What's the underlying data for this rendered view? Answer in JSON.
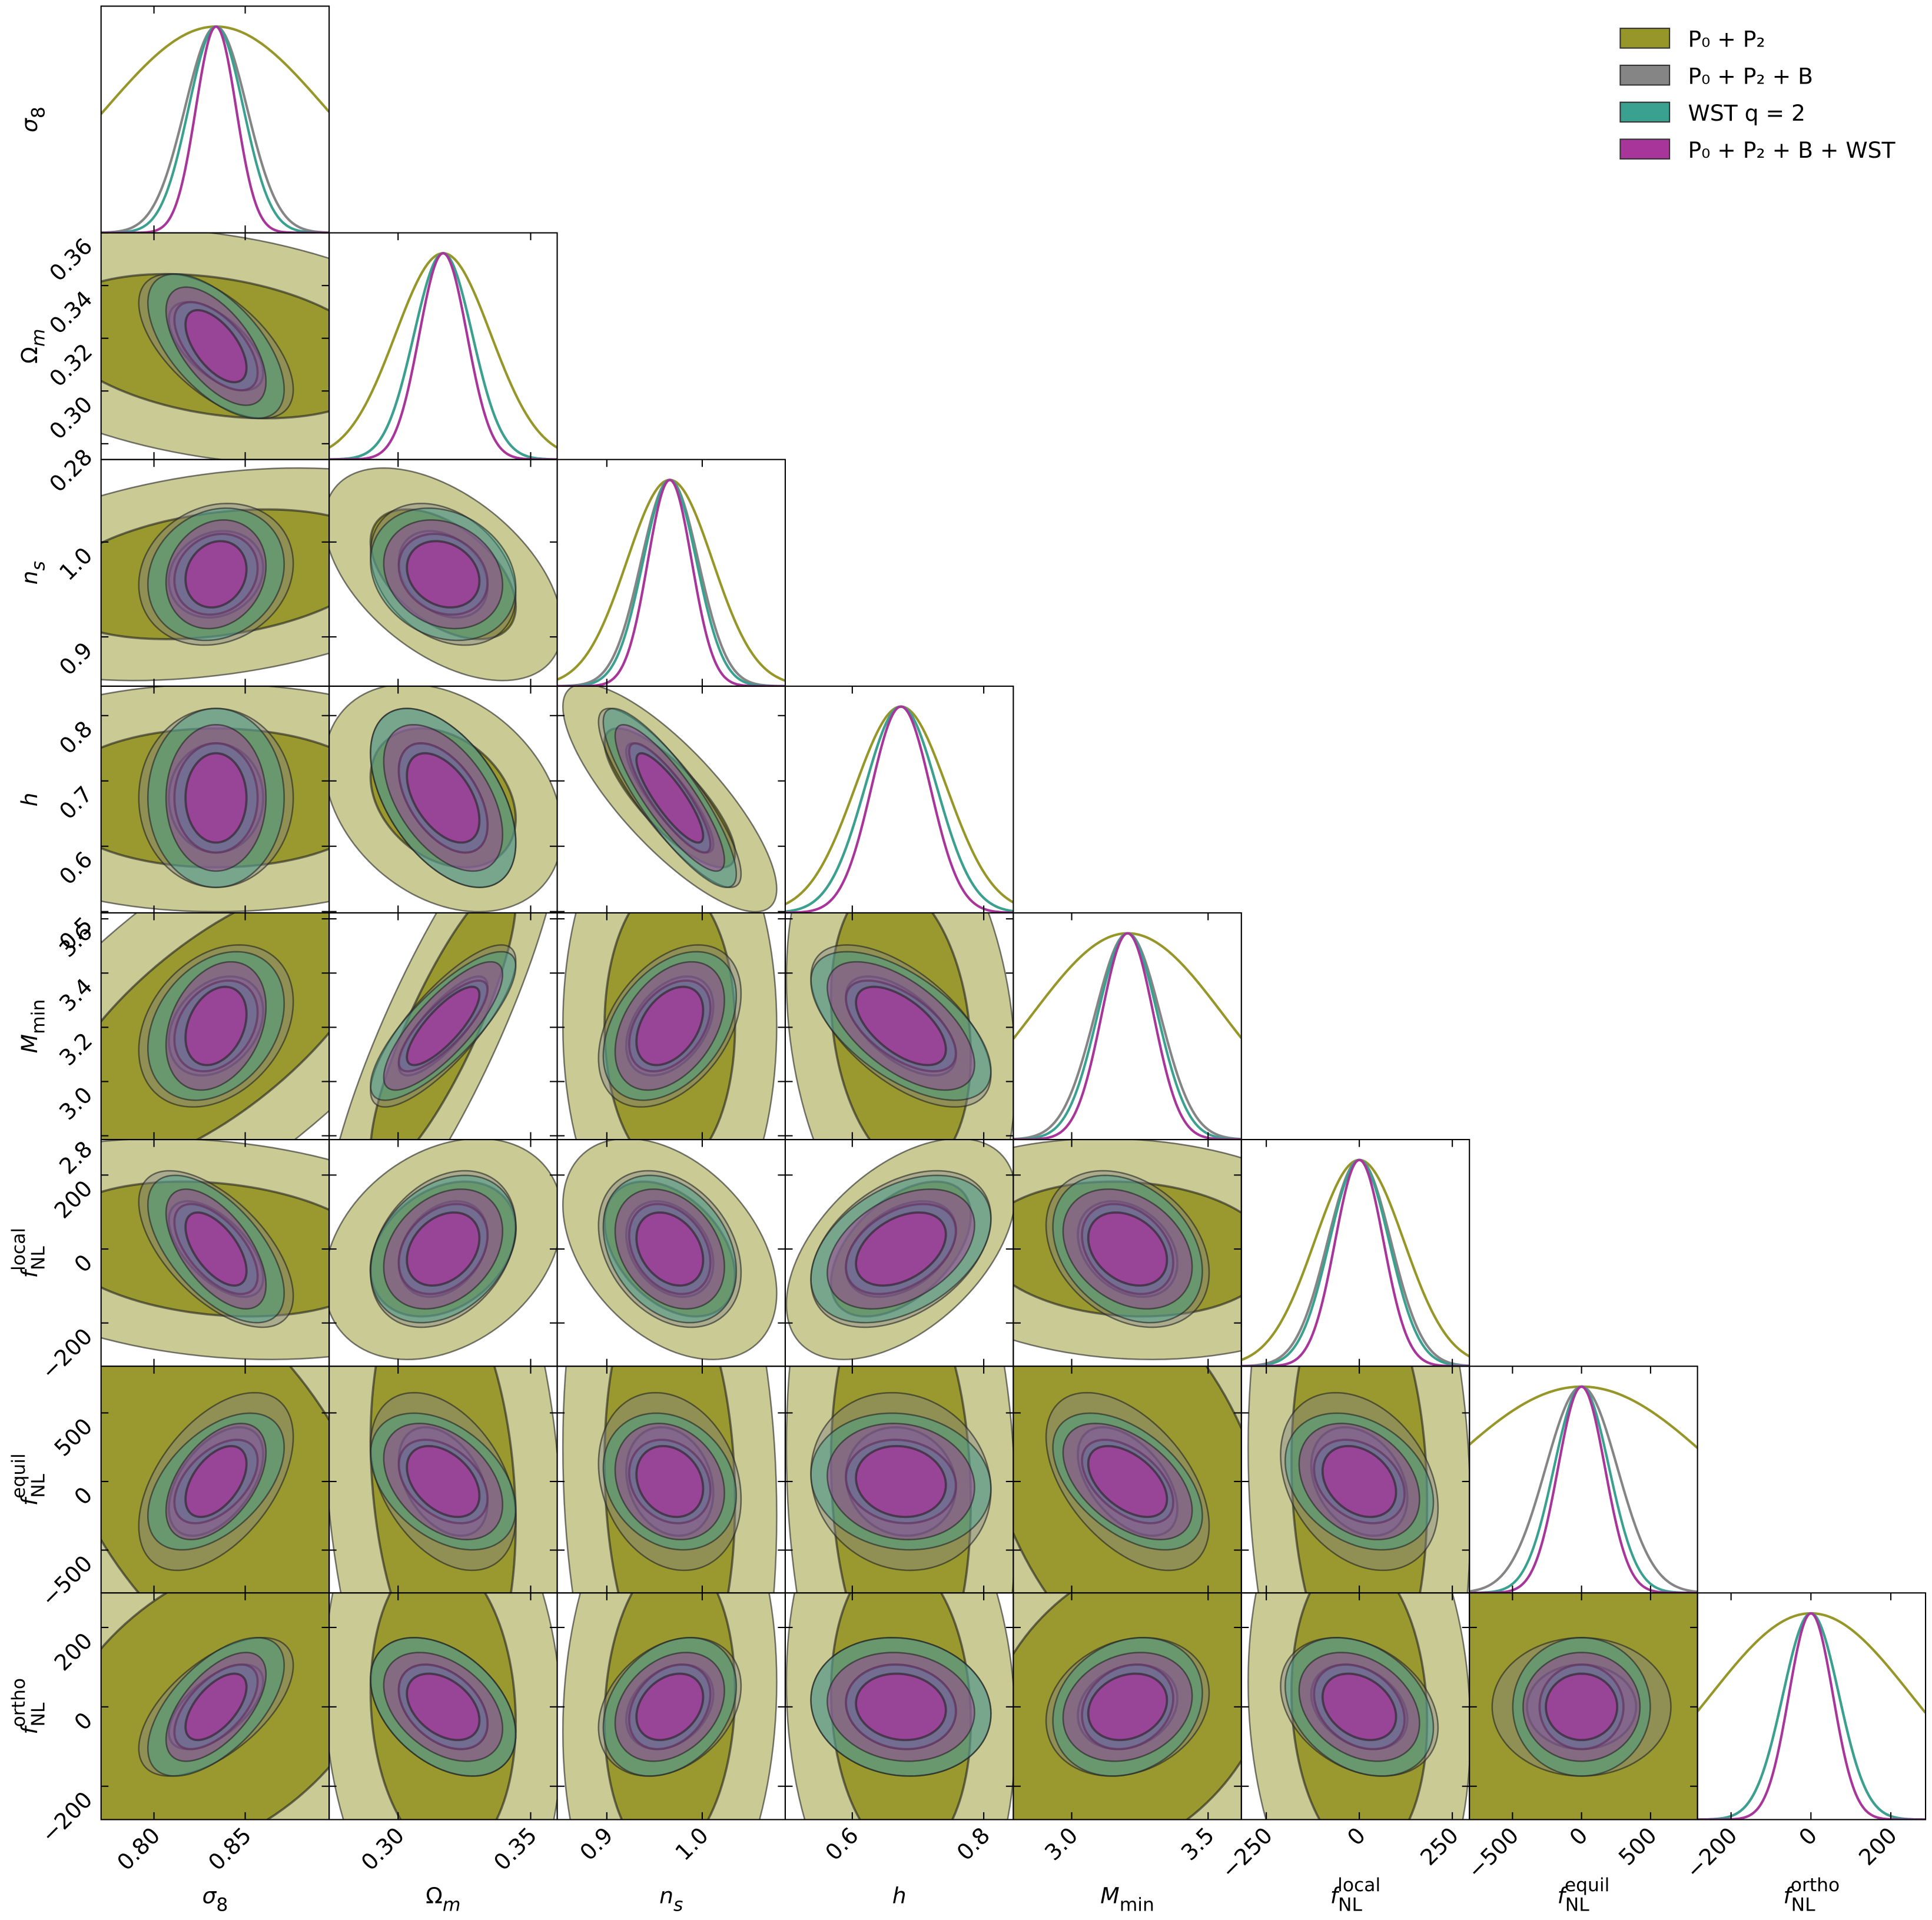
{
  "chart_data": {
    "type": "corner",
    "parameters": [
      {
        "label": {
          "main": "σ",
          "sub": "8"
        },
        "lim": [
          0.771,
          0.896
        ],
        "mean": 0.834,
        "xticks": [
          {
            "value": 0.8,
            "label": "0.80"
          },
          0.85
        ]
      },
      {
        "label": {
          "main": "Ω",
          "sub": "m"
        },
        "lim": [
          0.274,
          0.36
        ],
        "mean": 0.317,
        "xticks": [
          {
            "value": 0.3,
            "label": "0.30"
          },
          0.35
        ],
        "yticks": [
          0.28,
          {
            "value": 0.3,
            "label": "0.30"
          },
          0.32,
          0.34,
          0.36
        ]
      },
      {
        "label": {
          "main": "n",
          "sub": "s"
        },
        "lim": [
          0.848,
          1.087
        ],
        "mean": 0.966,
        "xticks": [
          0.9,
          {
            "value": 1.0,
            "label": "1.0"
          }
        ],
        "yticks": [
          0.9,
          {
            "value": 1.0,
            "label": "1.0"
          }
        ]
      },
      {
        "label": {
          "main": "h"
        },
        "lim": [
          0.498,
          0.845
        ],
        "mean": 0.674,
        "xticks": [
          0.6,
          0.8
        ],
        "yticks": [
          0.5,
          0.6,
          0.7,
          0.8
        ]
      },
      {
        "label": {
          "main": "M",
          "sub": "min"
        },
        "lim": [
          2.786,
          3.622
        ],
        "mean": 3.205,
        "xticks": [
          {
            "value": 3.0,
            "label": "3.0"
          },
          3.5
        ],
        "yticks": [
          2.8,
          {
            "value": 3.0,
            "label": "3.0"
          },
          3.2,
          3.4,
          3.6
        ]
      },
      {
        "label": {
          "main": "f",
          "sub": "NL",
          "sup": "local"
        },
        "lim": [
          -317,
          296
        ],
        "mean": 0,
        "xticks": [
          {
            "value": -250,
            "label": "−250"
          },
          0,
          250
        ],
        "yticks": [
          {
            "value": -200,
            "label": "−200"
          },
          0,
          200
        ]
      },
      {
        "label": {
          "main": "f",
          "sub": "NL",
          "sup": "equil"
        },
        "lim": [
          -812,
          840
        ],
        "mean": 0,
        "xticks": [
          {
            "value": -500,
            "label": "−500"
          },
          0,
          500
        ],
        "yticks": [
          {
            "value": -500,
            "label": "−500"
          },
          0,
          500
        ]
      },
      {
        "label": {
          "main": "f",
          "sub": "NL",
          "sup": "ortho"
        },
        "lim": [
          -284,
          287
        ],
        "mean": 0,
        "xticks": [
          {
            "value": -200,
            "label": "−200"
          },
          0,
          200
        ],
        "yticks": [
          {
            "value": -200,
            "label": "−200"
          },
          0,
          200
        ]
      }
    ],
    "series": [
      {
        "name": "P₀ + P₂",
        "color": "#969629",
        "sigmas": [
          0.06,
          0.018,
          0.045,
          0.07,
          0.35,
          120,
          1000,
          250
        ]
      },
      {
        "name": "P₀ + P₂ + B",
        "color": "#858585",
        "sigmas": [
          0.017,
          0.011,
          0.03,
          0.055,
          0.12,
          85,
          260,
          70
        ]
      },
      {
        "name": "WST q = 2",
        "color": "#3aa08f",
        "sigmas": [
          0.015,
          0.011,
          0.028,
          0.055,
          0.11,
          80,
          200,
          70
        ]
      },
      {
        "name": "P₀ + P₂ + B + WST",
        "color": "#a8359a",
        "sigmas": [
          0.011,
          0.009,
          0.023,
          0.045,
          0.095,
          65,
          170,
          55
        ]
      }
    ],
    "correlations": [
      [],
      [
        [
          -0.3,
          -0.6,
          -0.6,
          -0.6
        ]
      ],
      [
        [
          0.3,
          0.15,
          0.15,
          0.15
        ],
        [
          -0.5,
          -0.3,
          -0.2,
          -0.2
        ]
      ],
      [
        [
          0,
          0,
          0,
          0
        ],
        [
          -0.3,
          -0.5,
          -0.5,
          -0.5
        ],
        [
          -0.8,
          -0.85,
          -0.85,
          -0.85
        ]
      ],
      [
        [
          0.7,
          0.3,
          0.3,
          0.3
        ],
        [
          0.85,
          0.8,
          0.8,
          0.8
        ],
        [
          0,
          0.4,
          0.4,
          0.4
        ],
        [
          -0.2,
          -0.6,
          -0.6,
          -0.6
        ]
      ],
      [
        [
          -0.2,
          -0.6,
          -0.6,
          -0.6
        ],
        [
          0.3,
          0.3,
          0.3,
          0.3
        ],
        [
          -0.4,
          -0.3,
          -0.3,
          -0.3
        ],
        [
          0.5,
          0.4,
          0.4,
          0.4
        ],
        [
          -0.1,
          -0.3,
          -0.3,
          -0.3
        ]
      ],
      [
        [
          -0.5,
          0.5,
          0.5,
          0.5
        ],
        [
          -0.2,
          -0.4,
          -0.4,
          -0.4
        ],
        [
          -0.1,
          -0.2,
          -0.2,
          -0.2
        ],
        [
          -0.1,
          -0.1,
          -0.1,
          -0.1
        ],
        [
          -0.4,
          -0.5,
          -0.5,
          -0.5
        ],
        [
          -0.1,
          -0.3,
          -0.3,
          -0.3
        ]
      ],
      [
        [
          0.4,
          0.6,
          0.6,
          0.6
        ],
        [
          -0.1,
          -0.4,
          -0.4,
          -0.4
        ],
        [
          0.1,
          0.3,
          0.3,
          0.3
        ],
        [
          -0.1,
          -0.1,
          -0.1,
          -0.1
        ],
        [
          0.3,
          0.2,
          0.2,
          0.2
        ],
        [
          -0.1,
          -0.3,
          -0.3,
          -0.3
        ],
        [
          0,
          0,
          0,
          0
        ]
      ]
    ],
    "legend": "upper right"
  }
}
